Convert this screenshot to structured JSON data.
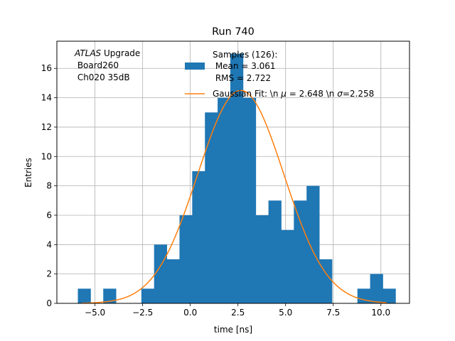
{
  "chart_data": {
    "type": "bar",
    "title": "Run 740",
    "xlabel": "time [ns]",
    "ylabel": "Entries",
    "xlim": [
      -7.0,
      11.5
    ],
    "ylim": [
      0,
      17.85
    ],
    "grid": true,
    "bin_width": 0.6667,
    "bins_left": [
      -5.9,
      -5.233,
      -4.567,
      -3.9,
      -3.233,
      -2.567,
      -1.9,
      -1.233,
      -0.567,
      0.1,
      0.767,
      1.433,
      2.1,
      2.767,
      3.433,
      4.1,
      4.767,
      5.433,
      6.1,
      6.767,
      7.433,
      8.1,
      8.767,
      9.433,
      10.1
    ],
    "counts": [
      1,
      0,
      1,
      0,
      0,
      1,
      4,
      3,
      6,
      9,
      13,
      14,
      17,
      14,
      6,
      7,
      5,
      7,
      8,
      3,
      0,
      0,
      1,
      2,
      1
    ],
    "x_ticks": [
      -5.0,
      -2.5,
      0.0,
      2.5,
      5.0,
      7.5,
      10.0
    ],
    "x_tick_labels": [
      "−5.0",
      "−2.5",
      "0.0",
      "2.5",
      "5.0",
      "7.5",
      "10.0"
    ],
    "y_ticks": [
      0,
      2,
      4,
      6,
      8,
      10,
      12,
      14,
      16
    ],
    "y_tick_labels": [
      "0",
      "2",
      "4",
      "6",
      "8",
      "10",
      "12",
      "14",
      "16"
    ],
    "fit": {
      "amplitude": 14.5,
      "mu": 2.648,
      "sigma": 2.258,
      "x_range": [
        -5.7,
        10.3
      ]
    },
    "colors": {
      "hist": "#1f77b4",
      "fit": "#ff7f0e",
      "grid": "#b0b0b0"
    },
    "annotation": {
      "atlas": "ATLAS",
      "upgrade": " Upgrade",
      "board": " Board260",
      "channel": " Ch020 35dB"
    },
    "legend": {
      "position": "top-right",
      "hist_line1": "Samples (126):",
      "hist_line2": " Mean = 3.061",
      "hist_line3": " RMS = 2.722",
      "fit_prefix": "Gaussian Fit: \\n ",
      "fit_mu_symbol": "μ",
      "fit_mid": " = 2.648 \\n ",
      "fit_sigma_symbol": "σ",
      "fit_suffix": "=2.258"
    }
  }
}
